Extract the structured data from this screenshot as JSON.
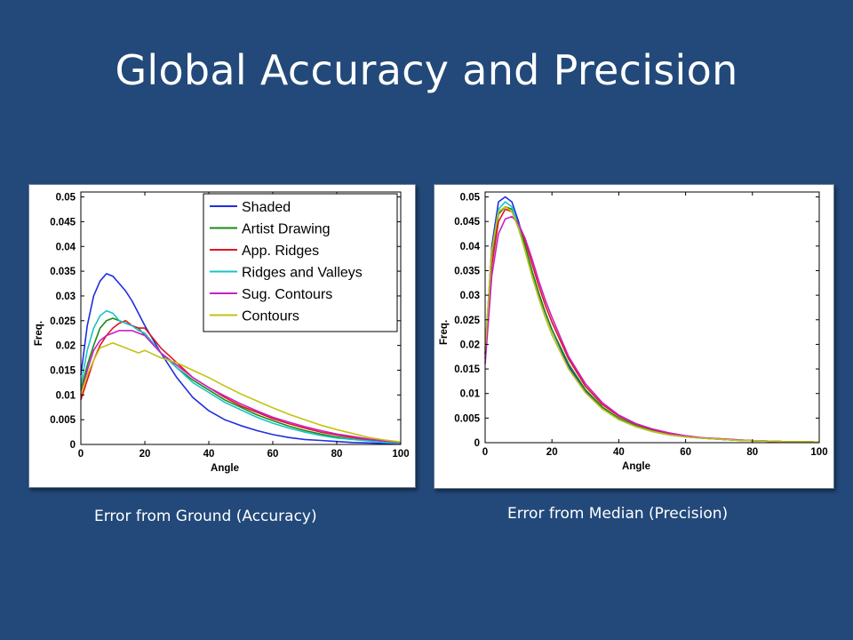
{
  "slide": {
    "title": "Global Accuracy and Precision",
    "caption_left": "Error from Ground (Accuracy)",
    "caption_right": "Error from Median (Precision)"
  },
  "colors": {
    "background": "#22497a",
    "Shaded": "#1f2ee0",
    "Artist Drawing": "#1a8a1a",
    "App. Ridges": "#e3141b",
    "Ridges and Valleys": "#18c4c8",
    "Sug. Contours": "#c820c8",
    "Contours": "#c2c212"
  },
  "chart_data": [
    {
      "type": "line",
      "title": "",
      "xlabel": "Angle",
      "ylabel": "Freq.",
      "xlim": [
        0,
        100
      ],
      "ylim": [
        0,
        0.051
      ],
      "xticks": [
        "0",
        "20",
        "40",
        "60",
        "80",
        "100"
      ],
      "yticks": [
        "0",
        "0.005",
        "0.01",
        "0.015",
        "0.02",
        "0.025",
        "0.03",
        "0.035",
        "0.04",
        "0.045",
        "0.05"
      ],
      "grid": false,
      "legend_position": "top-right",
      "x": [
        0,
        2,
        4,
        6,
        8,
        10,
        12,
        14,
        16,
        18,
        20,
        25,
        30,
        35,
        40,
        45,
        50,
        55,
        60,
        65,
        70,
        75,
        80,
        85,
        90,
        95,
        100
      ],
      "series": [
        {
          "name": "Shaded",
          "values": [
            0.014,
            0.024,
            0.03,
            0.033,
            0.0345,
            0.034,
            0.0325,
            0.031,
            0.029,
            0.0265,
            0.024,
            0.0185,
            0.0135,
            0.0095,
            0.0068,
            0.005,
            0.0038,
            0.0028,
            0.002,
            0.0014,
            0.001,
            0.0008,
            0.0006,
            0.0004,
            0.0003,
            0.0002,
            0.0001
          ]
        },
        {
          "name": "Artist Drawing",
          "values": [
            0.011,
            0.016,
            0.02,
            0.0235,
            0.025,
            0.0255,
            0.025,
            0.0245,
            0.024,
            0.0235,
            0.022,
            0.0185,
            0.0155,
            0.013,
            0.011,
            0.009,
            0.0075,
            0.006,
            0.0048,
            0.0037,
            0.0028,
            0.0021,
            0.0015,
            0.0011,
            0.0008,
            0.0005,
            0.0003
          ]
        },
        {
          "name": "App. Ridges",
          "values": [
            0.009,
            0.013,
            0.017,
            0.02,
            0.022,
            0.0235,
            0.0245,
            0.025,
            0.024,
            0.0235,
            0.0235,
            0.0195,
            0.0165,
            0.0135,
            0.0115,
            0.0095,
            0.0078,
            0.0065,
            0.0052,
            0.0042,
            0.0033,
            0.0025,
            0.0019,
            0.0014,
            0.001,
            0.0006,
            0.0003
          ]
        },
        {
          "name": "Ridges and Valleys",
          "values": [
            0.012,
            0.019,
            0.0235,
            0.026,
            0.027,
            0.0265,
            0.025,
            0.0245,
            0.024,
            0.023,
            0.0225,
            0.0185,
            0.0155,
            0.0125,
            0.0105,
            0.0085,
            0.007,
            0.0055,
            0.0043,
            0.0033,
            0.0025,
            0.0018,
            0.0013,
            0.001,
            0.0007,
            0.0004,
            0.0002
          ]
        },
        {
          "name": "Sug. Contours",
          "values": [
            0.01,
            0.015,
            0.019,
            0.021,
            0.022,
            0.0225,
            0.023,
            0.023,
            0.023,
            0.0225,
            0.022,
            0.0185,
            0.016,
            0.0135,
            0.0115,
            0.0098,
            0.0082,
            0.0068,
            0.0055,
            0.0045,
            0.0036,
            0.0028,
            0.0021,
            0.0016,
            0.0011,
            0.0007,
            0.0004
          ]
        },
        {
          "name": "Contours",
          "values": [
            0.01,
            0.014,
            0.017,
            0.0195,
            0.02,
            0.0205,
            0.02,
            0.0195,
            0.019,
            0.0185,
            0.019,
            0.0175,
            0.0165,
            0.015,
            0.0135,
            0.0118,
            0.0102,
            0.0088,
            0.0074,
            0.0061,
            0.005,
            0.0039,
            0.003,
            0.0022,
            0.0014,
            0.0009,
            0.0005
          ]
        }
      ]
    },
    {
      "type": "line",
      "title": "",
      "xlabel": "Angle",
      "ylabel": "Freq.",
      "xlim": [
        0,
        100
      ],
      "ylim": [
        0,
        0.051
      ],
      "xticks": [
        "0",
        "20",
        "40",
        "60",
        "80",
        "100"
      ],
      "yticks": [
        "0",
        "0.005",
        "0.01",
        "0.015",
        "0.02",
        "0.025",
        "0.03",
        "0.035",
        "0.04",
        "0.045",
        "0.05"
      ],
      "grid": false,
      "x": [
        0,
        2,
        4,
        6,
        8,
        10,
        12,
        14,
        16,
        18,
        20,
        25,
        30,
        35,
        40,
        45,
        50,
        55,
        60,
        65,
        70,
        75,
        80,
        85,
        90,
        95,
        100
      ],
      "series": [
        {
          "name": "Shaded",
          "values": [
            0.018,
            0.04,
            0.049,
            0.05,
            0.049,
            0.045,
            0.04,
            0.035,
            0.0305,
            0.0265,
            0.023,
            0.0155,
            0.0105,
            0.007,
            0.0048,
            0.0033,
            0.0023,
            0.0016,
            0.0012,
            0.0009,
            0.0007,
            0.0005,
            0.0004,
            0.0003,
            0.0002,
            0.0002,
            0.0001
          ]
        },
        {
          "name": "Artist Drawing",
          "values": [
            0.018,
            0.038,
            0.0465,
            0.048,
            0.0475,
            0.0445,
            0.04,
            0.035,
            0.0305,
            0.0265,
            0.023,
            0.016,
            0.0108,
            0.0073,
            0.005,
            0.0035,
            0.0025,
            0.0018,
            0.0013,
            0.001,
            0.0007,
            0.0005,
            0.0004,
            0.0003,
            0.0002,
            0.0002,
            0.0001
          ]
        },
        {
          "name": "App. Ridges",
          "values": [
            0.017,
            0.036,
            0.045,
            0.0475,
            0.047,
            0.0445,
            0.041,
            0.0365,
            0.032,
            0.028,
            0.0245,
            0.017,
            0.0115,
            0.0078,
            0.0054,
            0.0038,
            0.0027,
            0.0019,
            0.0014,
            0.001,
            0.0008,
            0.0006,
            0.0004,
            0.0003,
            0.0002,
            0.0002,
            0.0001
          ]
        },
        {
          "name": "Ridges and Valleys",
          "values": [
            0.019,
            0.039,
            0.0475,
            0.049,
            0.048,
            0.044,
            0.039,
            0.034,
            0.0295,
            0.0255,
            0.022,
            0.015,
            0.0102,
            0.0069,
            0.0047,
            0.0033,
            0.0023,
            0.0016,
            0.0012,
            0.0009,
            0.0007,
            0.0005,
            0.0004,
            0.0003,
            0.0002,
            0.0002,
            0.0001
          ]
        },
        {
          "name": "Sug. Contours",
          "values": [
            0.016,
            0.034,
            0.0425,
            0.0455,
            0.046,
            0.0445,
            0.0415,
            0.0375,
            0.033,
            0.029,
            0.0255,
            0.0175,
            0.012,
            0.0082,
            0.0056,
            0.0039,
            0.0028,
            0.002,
            0.0014,
            0.001,
            0.0008,
            0.0006,
            0.0004,
            0.0003,
            0.0002,
            0.0002,
            0.0001
          ]
        },
        {
          "name": "Contours",
          "values": [
            0.019,
            0.039,
            0.047,
            0.048,
            0.047,
            0.0435,
            0.039,
            0.034,
            0.0295,
            0.0255,
            0.022,
            0.015,
            0.0102,
            0.0069,
            0.0047,
            0.0033,
            0.0023,
            0.0016,
            0.0012,
            0.0009,
            0.0007,
            0.0005,
            0.0004,
            0.0003,
            0.0002,
            0.0002,
            0.0001
          ]
        }
      ]
    }
  ]
}
